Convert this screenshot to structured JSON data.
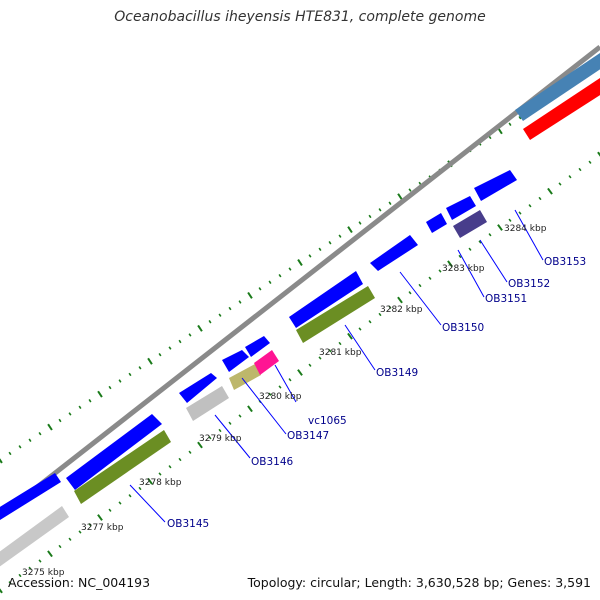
{
  "title": "Oceanobacillus iheyensis HTE831, complete genome",
  "footer": {
    "accession": "Accession: NC_004193",
    "summary": "Topology: circular; Length: 3,630,528 bp; Genes: 3,591"
  },
  "colors": {
    "background": "#ffffff",
    "backbone": "#808080",
    "tick": "#1a7a1a",
    "gene_default": "#0000ff",
    "label": "#00008b"
  },
  "kbp_labels": [
    "3275 kbp",
    "3277 kbp",
    "3278 kbp",
    "3279 kbp",
    "3280 kbp",
    "3281 kbp",
    "3282 kbp",
    "3283 kbp",
    "3284 kbp"
  ],
  "gene_labels": [
    "OB3145",
    "OB3146",
    "OB3147",
    "vc1065",
    "OB3149",
    "OB3150",
    "OB3151",
    "OB3152",
    "OB3153"
  ],
  "legend_feature_colors": {
    "cds_forward": "#0000ff",
    "cds_reverse_green": "#6b8e23",
    "cds_grey": "#c0c0c0",
    "cds_khaki": "#bdb76b",
    "cds_pink": "#ff1493",
    "cds_dark_slate": "#483d8b",
    "rna_steelblue": "#4682b4",
    "rna_red": "#ff0000"
  }
}
